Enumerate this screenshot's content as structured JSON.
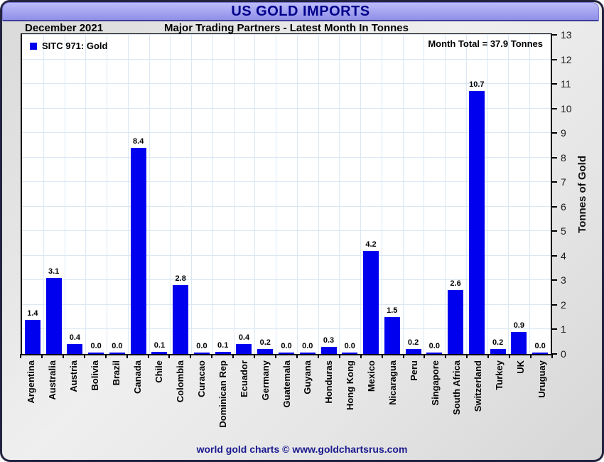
{
  "header": {
    "title": "US GOLD IMPORTS"
  },
  "subheader": {
    "period": "December 2021",
    "title": "Major Trading Partners - Latest Month In Tonnes"
  },
  "plot": {
    "legend_label": "SITC 971: Gold",
    "annotation": "Month Total = 37.9 Tonnes"
  },
  "footer": {
    "credit": "world gold charts © www.goldchartsrus.com"
  },
  "colors": {
    "bar": "#0000ee",
    "grid": "#dbe8f4",
    "title": "#00008b",
    "band_top": "#bcbcfa",
    "band_bot": "#8f8fe8",
    "frame": "#23233f",
    "footer": "#1a1a8f"
  },
  "chart_data": {
    "type": "bar",
    "title": "US GOLD IMPORTS",
    "subtitle": "Major Trading Partners - Latest Month In Tonnes",
    "period": "December 2021",
    "legend": [
      "SITC 971: Gold"
    ],
    "legend_position": "top-left",
    "annotation": "Month Total = 37.9 Tonnes",
    "categories": [
      "Argentina",
      "Australia",
      "Austria",
      "Bolivia",
      "Brazil",
      "Canada",
      "Chile",
      "Colombia",
      "Curacao",
      "Dominican Rep",
      "Ecuador",
      "Germany",
      "Guatemala",
      "Guyana",
      "Honduras",
      "Hong Kong",
      "Mexico",
      "Nicaragua",
      "Peru",
      "Singapore",
      "South Africa",
      "Switzerland",
      "Turkey",
      "UK",
      "Uruguay"
    ],
    "values": [
      1.4,
      3.1,
      0.4,
      0.0,
      0.0,
      8.4,
      0.1,
      2.8,
      0.0,
      0.1,
      0.4,
      0.2,
      0.0,
      0.0,
      0.3,
      0.0,
      4.2,
      1.5,
      0.2,
      0.0,
      2.6,
      10.7,
      0.2,
      0.9,
      0.0
    ],
    "xlabel": "",
    "ylabel": "Tonnes of Gold",
    "ylim": [
      0,
      13
    ],
    "ytick_step": 1,
    "grid": true,
    "value_labels": true,
    "value_label_format": "0.1f"
  }
}
